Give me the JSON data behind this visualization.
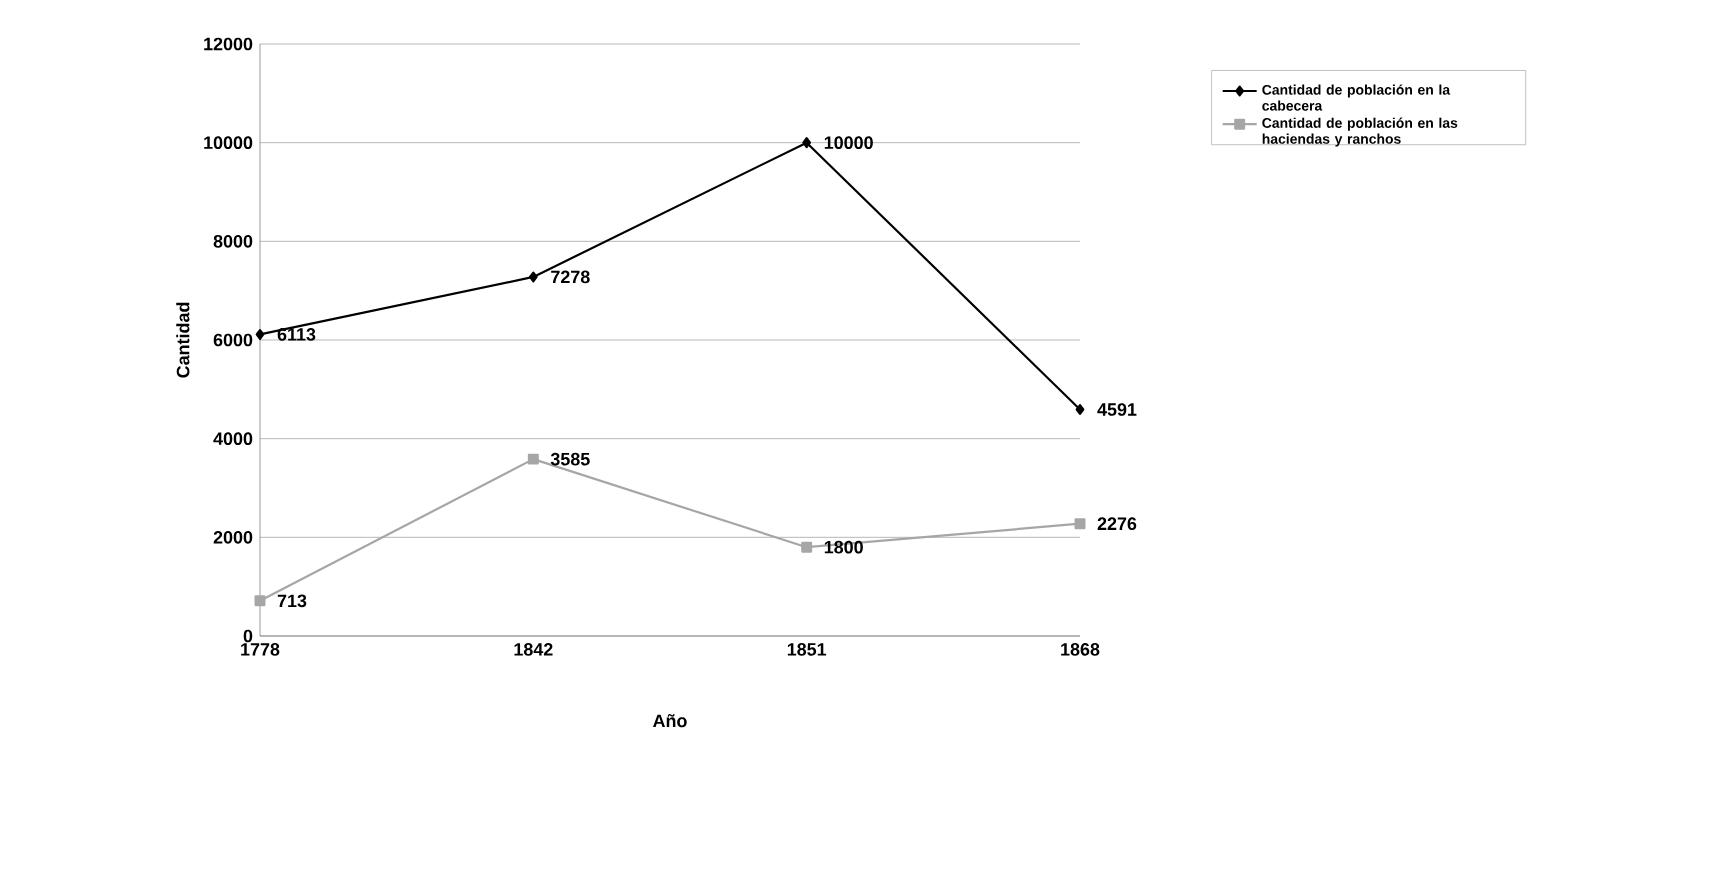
{
  "chart_data": {
    "type": "line",
    "xlabel": "Año",
    "ylabel": "Cantidad",
    "categories": [
      "1778",
      "1842",
      "1851",
      "1868"
    ],
    "series": [
      {
        "name": "Cantidad de población en la cabecera",
        "color": "#000000",
        "marker": "diamond",
        "values": [
          6113,
          7278,
          10000,
          4591
        ]
      },
      {
        "name": "Cantidad de población en las haciendas y ranchos",
        "color": "#a6a6a6",
        "marker": "square",
        "values": [
          713,
          3585,
          1800,
          2276
        ]
      }
    ],
    "ylim": [
      0,
      12000
    ],
    "yticks": [
      0,
      2000,
      4000,
      6000,
      8000,
      10000,
      12000
    ],
    "grid": "y",
    "legend": "top right",
    "data_labels": true,
    "line_style": "solid"
  }
}
